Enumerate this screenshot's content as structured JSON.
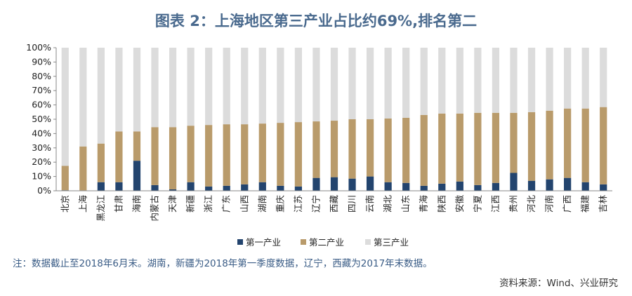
{
  "title": "图表 2：上海地区第三产业占比约69%,排名第二",
  "note": "注：数据截止至2018年6月末。湖南，新疆为2018年第一季度数据，辽宁，西藏为2017年末数据。",
  "source": "资料来源：Wind、兴业研究",
  "colors": {
    "primary": "#23446e",
    "secondary": "#b99b6b",
    "tertiary": "#dcdcdc"
  },
  "chart_data": {
    "type": "bar",
    "stacked": true,
    "normalized": true,
    "categories": [
      "北京",
      "上海",
      "黑龙江",
      "甘肃",
      "海南",
      "内蒙古",
      "天津",
      "新疆",
      "浙江",
      "广东",
      "山西",
      "湖南",
      "重庆",
      "江苏",
      "辽宁",
      "西藏",
      "四川",
      "云南",
      "湖北",
      "山东",
      "青海",
      "陕西",
      "安徽",
      "宁夏",
      "江西",
      "贵州",
      "河北",
      "河南",
      "广西",
      "福建",
      "吉林"
    ],
    "series": [
      {
        "name": "第一产业",
        "values": [
          0.4,
          0.3,
          6.0,
          6.0,
          21.0,
          4.0,
          1.0,
          6.0,
          3.0,
          3.5,
          4.5,
          6.0,
          3.5,
          3.0,
          9.0,
          9.5,
          8.5,
          10.0,
          6.0,
          5.5,
          3.5,
          5.0,
          6.5,
          4.0,
          5.5,
          12.5,
          7.0,
          8.0,
          9.0,
          6.0,
          4.5
        ]
      },
      {
        "name": "第二产业",
        "values": [
          17.0,
          30.7,
          27.0,
          35.5,
          20.5,
          40.5,
          43.5,
          39.5,
          43.0,
          43.0,
          42.0,
          41.0,
          44.0,
          45.0,
          39.5,
          39.5,
          41.5,
          40.0,
          44.5,
          45.5,
          49.5,
          49.0,
          47.5,
          50.5,
          49.0,
          42.0,
          48.0,
          48.0,
          48.5,
          51.5,
          54.0
        ]
      },
      {
        "name": "第三产业",
        "values": [
          82.6,
          69.0,
          67.0,
          58.5,
          58.5,
          55.5,
          55.5,
          54.5,
          54.0,
          53.5,
          53.5,
          53.0,
          52.5,
          52.0,
          51.5,
          51.0,
          50.0,
          50.0,
          49.5,
          49.0,
          47.0,
          46.0,
          46.0,
          45.5,
          45.5,
          45.5,
          45.0,
          44.0,
          42.5,
          42.5,
          41.5
        ]
      }
    ],
    "y_ticks": [
      "0%",
      "10%",
      "20%",
      "30%",
      "40%",
      "50%",
      "60%",
      "70%",
      "80%",
      "90%",
      "100%"
    ],
    "ylim": [
      0,
      100
    ],
    "legend_position": "bottom",
    "grid": false
  }
}
